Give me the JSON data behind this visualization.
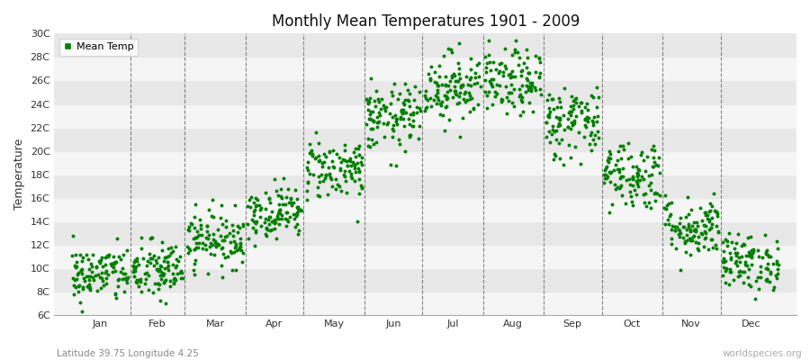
{
  "title": "Monthly Mean Temperatures 1901 - 2009",
  "ylabel": "Temperature",
  "subtitle": "Latitude 39.75 Longitude 4.25",
  "watermark": "worldspecies.org",
  "dot_color": "#008000",
  "background_color": "#f5f5f5",
  "alt_row_color": "#e8e8e8",
  "ylim": [
    6,
    30
  ],
  "yticks": [
    6,
    8,
    10,
    12,
    14,
    16,
    18,
    20,
    22,
    24,
    26,
    28,
    30
  ],
  "ytick_labels": [
    "6C",
    "8C",
    "10C",
    "12C",
    "14C",
    "16C",
    "18C",
    "20C",
    "22C",
    "24C",
    "26C",
    "28C",
    "30C"
  ],
  "months": [
    "Jan",
    "Feb",
    "Mar",
    "Apr",
    "May",
    "Jun",
    "Jul",
    "Aug",
    "Sep",
    "Oct",
    "Nov",
    "Dec"
  ],
  "monthly_mean_temps": [
    9.5,
    9.8,
    12.5,
    14.8,
    18.5,
    22.8,
    25.5,
    25.8,
    22.5,
    18.0,
    13.5,
    10.5
  ],
  "monthly_std": [
    1.2,
    1.3,
    1.2,
    1.1,
    1.3,
    1.4,
    1.5,
    1.4,
    1.6,
    1.5,
    1.3,
    1.2
  ],
  "n_years": 109,
  "legend_label": "Mean Temp",
  "dot_size": 8,
  "random_seed": 42,
  "dashed_line_color": "#555555",
  "spine_color": "#aaaaaa",
  "tick_label_color": "#333333",
  "subtitle_color": "#888888",
  "watermark_color": "#aaaaaa"
}
